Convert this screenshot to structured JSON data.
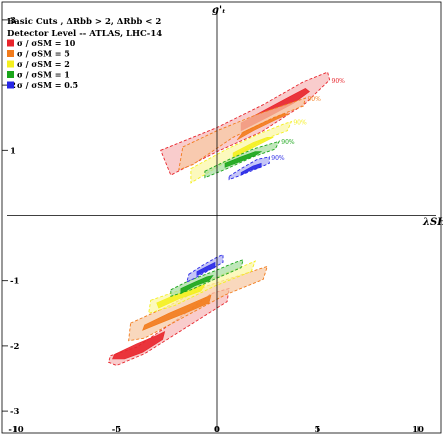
{
  "chart_data": {
    "type": "contour",
    "xlabel": "λSH",
    "ylabel": "g'ₜ",
    "xlim": [
      -10,
      10
    ],
    "ylim": [
      -3,
      3
    ],
    "x_ticks": [
      -10,
      -5,
      0,
      5,
      10
    ],
    "y_ticks": [
      -3,
      -2,
      -1,
      1,
      2,
      3
    ],
    "grid": false,
    "legend_position": "top-left",
    "header_lines": [
      "Basic Cuts , ΔRbb > 2, ΔRbb < 2",
      "Detector Level -- ATLAS, LHC-14"
    ],
    "series": [
      {
        "name": "σ / σSM = 10",
        "color": "#e8242b",
        "light": "#f6b8b8",
        "label": "90%",
        "outer_upper": [
          [
            -2.8,
            1.0
          ],
          [
            0,
            1.35
          ],
          [
            2.3,
            1.7
          ],
          [
            4.3,
            2.05
          ],
          [
            5.5,
            2.2
          ],
          [
            5.6,
            2.08
          ],
          [
            4.4,
            1.72
          ],
          [
            2.2,
            1.28
          ],
          [
            0,
            0.98
          ],
          [
            -2.3,
            0.62
          ]
        ],
        "outer_lower": [
          [
            -5.3,
            -2.15
          ],
          [
            -4,
            -2.02
          ],
          [
            -2,
            -1.6
          ],
          [
            -0.3,
            -1.2
          ],
          [
            0.6,
            -1.12
          ],
          [
            0.5,
            -1.32
          ],
          [
            -1.7,
            -1.75
          ],
          [
            -3.6,
            -2.12
          ],
          [
            -5,
            -2.3
          ],
          [
            -5.4,
            -2.25
          ]
        ],
        "inner_upper": [
          [
            1.2,
            1.42
          ],
          [
            2.5,
            1.64
          ],
          [
            3.6,
            1.82
          ],
          [
            4.4,
            1.95
          ],
          [
            4.6,
            1.9
          ],
          [
            3.8,
            1.72
          ],
          [
            2.6,
            1.52
          ],
          [
            1.2,
            1.3
          ]
        ],
        "inner_lower": [
          [
            -5.1,
            -2.13
          ],
          [
            -4,
            -1.97
          ],
          [
            -3,
            -1.84
          ],
          [
            -2.6,
            -1.78
          ],
          [
            -2.7,
            -1.9
          ],
          [
            -3.7,
            -2.1
          ],
          [
            -4.6,
            -2.2
          ],
          [
            -5.2,
            -2.2
          ]
        ]
      },
      {
        "name": "σ / σSM = 5",
        "color": "#f27b1b",
        "light": "#f7c9a3",
        "label": "90%",
        "outer_upper": [
          [
            -1.7,
            1.05
          ],
          [
            0,
            1.3
          ],
          [
            2,
            1.55
          ],
          [
            3.9,
            1.75
          ],
          [
            4.4,
            1.8
          ],
          [
            4.3,
            1.68
          ],
          [
            2.8,
            1.5
          ],
          [
            0.8,
            1.2
          ],
          [
            -1.2,
            0.78
          ],
          [
            -1.9,
            0.7
          ]
        ],
        "outer_lower": [
          [
            -4.3,
            -1.65
          ],
          [
            -2.5,
            -1.4
          ],
          [
            -0.5,
            -1.08
          ],
          [
            1.5,
            -0.88
          ],
          [
            2.5,
            -0.78
          ],
          [
            2.3,
            -0.98
          ],
          [
            0.4,
            -1.22
          ],
          [
            -1.6,
            -1.55
          ],
          [
            -3.6,
            -1.88
          ],
          [
            -4.4,
            -1.92
          ]
        ],
        "inner_upper": [
          [
            1.3,
            1.28
          ],
          [
            2.4,
            1.44
          ],
          [
            3.3,
            1.56
          ],
          [
            3.6,
            1.56
          ],
          [
            3.0,
            1.48
          ],
          [
            1.8,
            1.3
          ],
          [
            1.0,
            1.16
          ]
        ],
        "inner_lower": [
          [
            -3.6,
            -1.68
          ],
          [
            -2.4,
            -1.5
          ],
          [
            -1.2,
            -1.34
          ],
          [
            -0.3,
            -1.22
          ],
          [
            -0.4,
            -1.34
          ],
          [
            -1.6,
            -1.5
          ],
          [
            -2.9,
            -1.66
          ],
          [
            -3.7,
            -1.76
          ]
        ]
      },
      {
        "name": "σ / σSM = 2",
        "color": "#f4ef1e",
        "light": "#fbf7a4",
        "label": "90%",
        "outer_upper": [
          [
            -1.3,
            0.72
          ],
          [
            0.5,
            1.02
          ],
          [
            2,
            1.24
          ],
          [
            3.3,
            1.4
          ],
          [
            3.7,
            1.44
          ],
          [
            3.5,
            1.3
          ],
          [
            2.2,
            1.15
          ],
          [
            0.6,
            0.85
          ],
          [
            -1.3,
            0.5
          ]
        ],
        "outer_lower": [
          [
            -3.3,
            -1.3
          ],
          [
            -1.8,
            -1.14
          ],
          [
            0,
            -0.94
          ],
          [
            1.6,
            -0.74
          ],
          [
            1.9,
            -0.7
          ],
          [
            1.7,
            -0.86
          ],
          [
            -0.1,
            -1.08
          ],
          [
            -2.1,
            -1.38
          ],
          [
            -3.4,
            -1.5
          ]
        ],
        "inner_upper": [
          [
            0.8,
            0.96
          ],
          [
            1.8,
            1.12
          ],
          [
            2.5,
            1.2
          ],
          [
            2.8,
            1.2
          ],
          [
            2.3,
            1.12
          ],
          [
            1.4,
            0.98
          ],
          [
            0.8,
            0.88
          ]
        ],
        "inner_lower": [
          [
            -3,
            -1.34
          ],
          [
            -2.1,
            -1.22
          ],
          [
            -1.2,
            -1.12
          ],
          [
            -0.6,
            -1.06
          ],
          [
            -0.8,
            -1.16
          ],
          [
            -1.9,
            -1.28
          ],
          [
            -2.9,
            -1.42
          ]
        ]
      },
      {
        "name": "σ / σSM = 1",
        "color": "#1aa51a",
        "light": "#a6dea0",
        "label": "90%",
        "outer_upper": [
          [
            -0.6,
            0.68
          ],
          [
            0.6,
            0.86
          ],
          [
            1.8,
            1.02
          ],
          [
            2.9,
            1.12
          ],
          [
            3.1,
            1.14
          ],
          [
            2.9,
            1.02
          ],
          [
            1.8,
            0.9
          ],
          [
            0.5,
            0.72
          ],
          [
            -0.6,
            0.58
          ]
        ],
        "outer_lower": [
          [
            -2.3,
            -1.14
          ],
          [
            -1.4,
            -1.0
          ],
          [
            -0.2,
            -0.86
          ],
          [
            0.9,
            -0.72
          ],
          [
            1.3,
            -0.68
          ],
          [
            1.2,
            -0.8
          ],
          [
            0,
            -0.96
          ],
          [
            -1.3,
            -1.14
          ],
          [
            -2.3,
            -1.24
          ]
        ],
        "inner_upper": [
          [
            0.4,
            0.8
          ],
          [
            1.2,
            0.9
          ],
          [
            1.9,
            0.98
          ],
          [
            2.2,
            0.98
          ],
          [
            1.9,
            0.92
          ],
          [
            1.1,
            0.82
          ],
          [
            0.4,
            0.74
          ]
        ],
        "inner_lower": [
          [
            -1.8,
            -1.12
          ],
          [
            -1.1,
            -1.02
          ],
          [
            -0.5,
            -0.94
          ],
          [
            -0.2,
            -0.92
          ],
          [
            -0.4,
            -1.0
          ],
          [
            -1.1,
            -1.08
          ],
          [
            -1.8,
            -1.2
          ]
        ]
      },
      {
        "name": "σ / σSM = 0.5",
        "color": "#2727e6",
        "light": "#aeaef4",
        "label": "90%",
        "outer_upper": [
          [
            0.6,
            0.6
          ],
          [
            1.2,
            0.72
          ],
          [
            2.0,
            0.86
          ],
          [
            2.6,
            0.9
          ],
          [
            2.6,
            0.8
          ],
          [
            2.0,
            0.72
          ],
          [
            1.2,
            0.62
          ],
          [
            0.6,
            0.55
          ]
        ],
        "outer_lower": [
          [
            -1.4,
            -0.9
          ],
          [
            -0.7,
            -0.76
          ],
          [
            0,
            -0.64
          ],
          [
            0.3,
            -0.6
          ],
          [
            0.3,
            -0.72
          ],
          [
            -0.4,
            -0.84
          ],
          [
            -1.1,
            -0.96
          ],
          [
            -1.5,
            -1.02
          ]
        ],
        "inner_upper": [
          [
            1.2,
            0.66
          ],
          [
            1.8,
            0.76
          ],
          [
            2.2,
            0.8
          ],
          [
            2.2,
            0.74
          ],
          [
            1.7,
            0.7
          ],
          [
            1.2,
            0.62
          ]
        ],
        "inner_lower": [
          [
            -1.0,
            -0.86
          ],
          [
            -0.5,
            -0.78
          ],
          [
            -0.1,
            -0.72
          ],
          [
            -0.1,
            -0.8
          ],
          [
            -0.6,
            -0.86
          ],
          [
            -1.0,
            -0.92
          ]
        ]
      }
    ]
  }
}
